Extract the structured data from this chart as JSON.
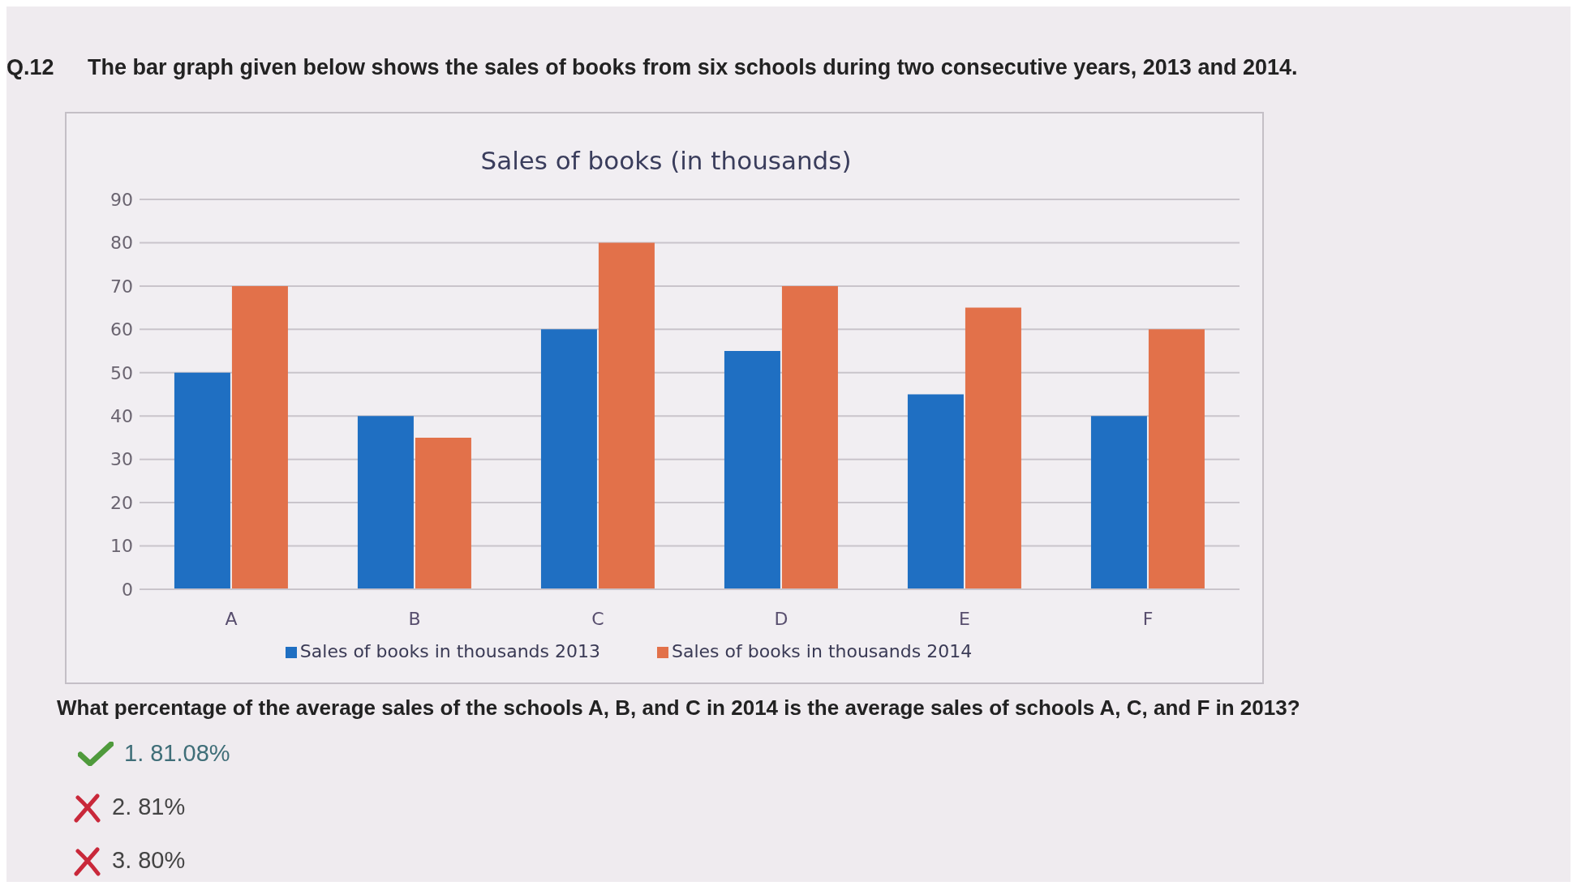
{
  "chart_data": {
    "type": "bar",
    "title": "Sales of books (in thousands)",
    "categories": [
      "A",
      "B",
      "C",
      "D",
      "E",
      "F"
    ],
    "series": [
      {
        "name": "Sales of books in thousands 2013",
        "color": "#1f6fc2",
        "values": [
          50,
          40,
          60,
          55,
          45,
          40
        ]
      },
      {
        "name": "Sales of books in thousands 2014",
        "color": "#e2714a",
        "values": [
          70,
          35,
          80,
          70,
          65,
          60
        ]
      }
    ],
    "ylim": [
      0,
      90
    ],
    "yticks": [
      0,
      10,
      20,
      30,
      40,
      50,
      60,
      70,
      80,
      90
    ],
    "grid": "y",
    "legend": "bottom",
    "annotations": [
      "Q.12",
      "The bar graph given below shows the sales of books from six schools during two consecutive years, 2013 and 2014.",
      "What percentage of the average sales of the schools A, B, and C in 2014 is the average sales of schools A, C, and F in 2013?",
      "1. 81.08%",
      "2. 81%",
      "3. 80%"
    ]
  }
}
